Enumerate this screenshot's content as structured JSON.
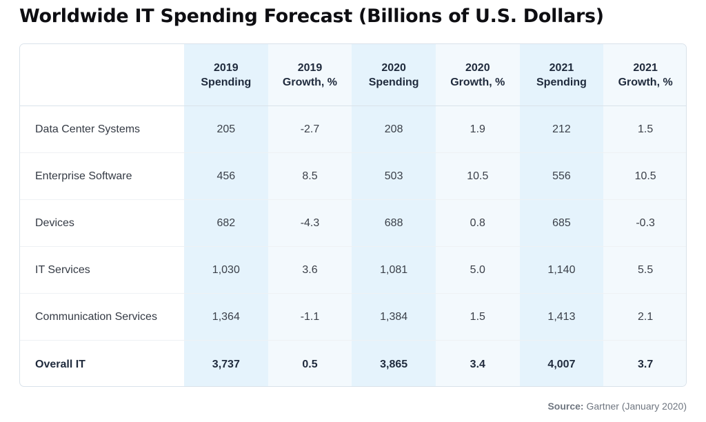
{
  "title": "Worldwide IT Spending Forecast (Billions of U.S. Dollars)",
  "source": {
    "label": "Source:",
    "text": "Gartner (January 2020)"
  },
  "colors": {
    "spending_column": "#e5f3fc",
    "growth_column": "#f3f9fd",
    "title_text": "#0e0e12"
  },
  "chart_data": {
    "type": "table",
    "title": "Worldwide IT Spending Forecast (Billions of U.S. Dollars)",
    "columns": [
      {
        "year": "2019",
        "metric": "Spending"
      },
      {
        "year": "2019",
        "metric": "Growth, %"
      },
      {
        "year": "2020",
        "metric": "Spending"
      },
      {
        "year": "2020",
        "metric": "Growth, %"
      },
      {
        "year": "2021",
        "metric": "Spending"
      },
      {
        "year": "2021",
        "metric": "Growth, %"
      }
    ],
    "rows": [
      {
        "label": "Data Center Systems",
        "values": [
          "205",
          "-2.7",
          "208",
          "1.9",
          "212",
          "1.5"
        ]
      },
      {
        "label": "Enterprise Software",
        "values": [
          "456",
          "8.5",
          "503",
          "10.5",
          "556",
          "10.5"
        ]
      },
      {
        "label": "Devices",
        "values": [
          "682",
          "-4.3",
          "688",
          "0.8",
          "685",
          "-0.3"
        ]
      },
      {
        "label": "IT Services",
        "values": [
          "1,030",
          "3.6",
          "1,081",
          "5.0",
          "1,140",
          "5.5"
        ]
      },
      {
        "label": "Communication Services",
        "values": [
          "1,364",
          "-1.1",
          "1,384",
          "1.5",
          "1,413",
          "2.1"
        ]
      }
    ],
    "total": {
      "label": "Overall IT",
      "values": [
        "3,737",
        "0.5",
        "3,865",
        "3.4",
        "4,007",
        "3.7"
      ]
    }
  }
}
